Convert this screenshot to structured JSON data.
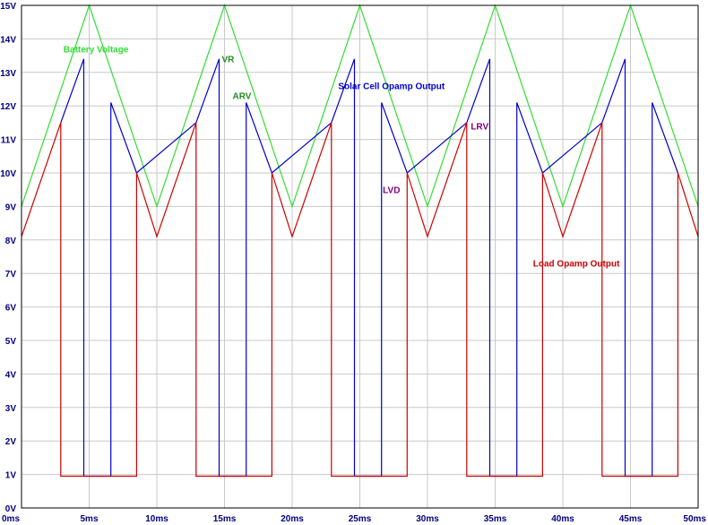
{
  "chart_data": {
    "type": "line",
    "grid": true,
    "xlim": [
      0,
      50
    ],
    "ylim": [
      0,
      15
    ],
    "x_ticks": [
      "0ms",
      "5ms",
      "10ms",
      "15ms",
      "20ms",
      "25ms",
      "30ms",
      "35ms",
      "40ms",
      "45ms",
      "50ms"
    ],
    "y_ticks": [
      "0V",
      "1V",
      "2V",
      "3V",
      "4V",
      "5V",
      "6V",
      "7V",
      "8V",
      "9V",
      "10V",
      "11V",
      "12V",
      "13V",
      "14V",
      "15V"
    ],
    "colors": {
      "grid": "#c8c8c8",
      "axis": "#000000",
      "tick_text": "#000080"
    },
    "series": [
      {
        "name": "Battery Voltage",
        "color": "#33dd33",
        "x": [
          0,
          5,
          10,
          15,
          20,
          25,
          30,
          35,
          40,
          45,
          50
        ],
        "y": [
          9,
          15,
          9,
          15,
          9,
          15,
          9,
          15,
          9,
          15,
          9
        ]
      },
      {
        "name": "Solar Cell Opamp Output",
        "color": "#0000cc",
        "x": [
          2.9,
          4.6,
          4.6,
          6.6,
          6.6,
          8.5,
          12.9,
          14.6,
          14.6,
          16.6,
          16.6,
          18.5,
          22.9,
          24.6,
          24.6,
          26.6,
          26.6,
          28.5,
          32.9,
          34.6,
          34.6,
          36.6,
          36.6,
          38.5,
          42.9,
          44.6,
          44.6,
          46.6,
          46.6,
          48.5
        ],
        "y": [
          11.5,
          13.4,
          0.95,
          0.95,
          12.1,
          10,
          11.5,
          13.4,
          0.95,
          0.95,
          12.1,
          10,
          11.5,
          13.4,
          0.95,
          0.95,
          12.1,
          10,
          11.5,
          13.4,
          0.95,
          0.95,
          12.1,
          10,
          11.5,
          13.4,
          0.95,
          0.95,
          12.1,
          10
        ]
      },
      {
        "name": "Load Opamp Output",
        "color": "#cc0000",
        "x": [
          0,
          2.9,
          2.9,
          8.5,
          8.5,
          10,
          12.9,
          12.9,
          18.5,
          18.5,
          20,
          22.9,
          22.9,
          28.5,
          28.5,
          30,
          32.9,
          32.9,
          38.5,
          38.5,
          40,
          42.9,
          42.9,
          48.5,
          48.5,
          50
        ],
        "y": [
          8.1,
          11.5,
          0.95,
          0.95,
          10,
          8.1,
          11.5,
          0.95,
          0.95,
          10,
          8.1,
          11.5,
          0.95,
          0.95,
          10,
          8.1,
          11.5,
          0.95,
          0.95,
          10,
          8.1,
          11.5,
          0.95,
          0.95,
          10,
          8.1
        ]
      }
    ],
    "annotations": [
      {
        "text": "Battery Voltage",
        "x": 3.1,
        "y": 13.6,
        "color": "#33dd33"
      },
      {
        "text": "VR",
        "x": 14.8,
        "y": 13.3,
        "color": "#228b22"
      },
      {
        "text": "ARV",
        "x": 15.6,
        "y": 12.2,
        "color": "#228b22"
      },
      {
        "text": "Solar Cell Opamp Output",
        "x": 23.4,
        "y": 12.5,
        "color": "#0000cc"
      },
      {
        "text": "LRV",
        "x": 33.2,
        "y": 11.3,
        "color": "#800080"
      },
      {
        "text": "LVD",
        "x": 26.7,
        "y": 9.4,
        "color": "#800080"
      },
      {
        "text": "Load Opamp Output",
        "x": 37.8,
        "y": 7.2,
        "color": "#cc0000"
      }
    ]
  }
}
